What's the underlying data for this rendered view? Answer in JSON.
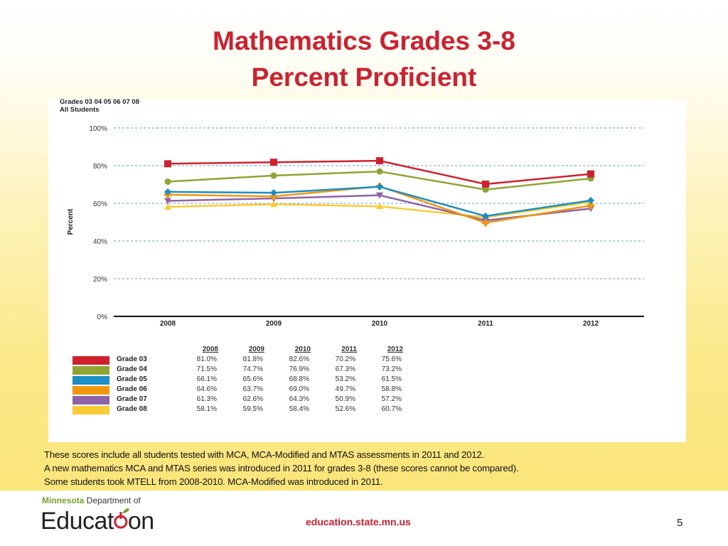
{
  "slide": {
    "title_line1": "Mathematics Grades 3-8",
    "title_line2": "Percent Proficient",
    "chart_subtitle_line1": "Grades 03 04 05 06 07 08",
    "chart_subtitle_line2": "All Students",
    "notes": [
      "These scores include all students tested with MCA, MCA-Modified and MTAS assessments in 2011 and 2012.",
      "A new mathematics MCA and MTAS series was introduced in 2011 for grades 3-8 (these scores cannot be compared).",
      "Some students took MTELL from 2008-2010.  MCA-Modified was introduced in 2011."
    ],
    "footer": {
      "logo_line1_bold": "Minnesota",
      "logo_line1_rest": " Department of",
      "logo_main": "Education",
      "url": "education.state.mn.us",
      "page_number": "5"
    }
  },
  "chart_data": {
    "type": "line",
    "title": "Mathematics Grades 3-8 Percent Proficient",
    "subtitle": "Grades 03 04 05 06 07 08 / All Students",
    "xlabel": "",
    "ylabel": "Percent",
    "ylim": [
      0,
      100
    ],
    "y_ticks": [
      "0%",
      "20%",
      "40%",
      "60%",
      "80%",
      "100%"
    ],
    "grid": true,
    "legend_position": "bottom-table",
    "categories": [
      "2008",
      "2009",
      "2010",
      "2011",
      "2012"
    ],
    "series": [
      {
        "name": "Grade 03",
        "color": "#d0202e",
        "marker": "square",
        "values": [
          81.0,
          81.8,
          82.6,
          70.2,
          75.6
        ],
        "labels": [
          "81.0%",
          "81.8%",
          "82.6%",
          "70.2%",
          "75.6%"
        ]
      },
      {
        "name": "Grade 04",
        "color": "#8ea532",
        "marker": "circle",
        "values": [
          71.5,
          74.7,
          76.9,
          67.3,
          73.2
        ],
        "labels": [
          "71.5%",
          "74.7%",
          "76.9%",
          "67.3%",
          "73.2%"
        ]
      },
      {
        "name": "Grade 05",
        "color": "#1a8fc4",
        "marker": "diamond",
        "values": [
          66.1,
          65.6,
          68.8,
          53.2,
          61.5
        ],
        "labels": [
          "66.1%",
          "65.6%",
          "68.8%",
          "53.2%",
          "61.5%"
        ]
      },
      {
        "name": "Grade 06",
        "color": "#f0970f",
        "marker": "plus",
        "values": [
          64.6,
          63.7,
          69.0,
          49.7,
          58.8
        ],
        "labels": [
          "64.6%",
          "63.7%",
          "69.0%",
          "49.7%",
          "58.8%"
        ]
      },
      {
        "name": "Grade 07",
        "color": "#8e63a8",
        "marker": "triangle-down",
        "values": [
          61.3,
          62.6,
          64.3,
          50.9,
          57.2
        ],
        "labels": [
          "61.3%",
          "62.6%",
          "64.3%",
          "50.9%",
          "57.2%"
        ]
      },
      {
        "name": "Grade 08",
        "color": "#f9cb36",
        "marker": "triangle-up",
        "values": [
          58.1,
          59.5,
          58.4,
          52.6,
          60.7
        ],
        "labels": [
          "58.1%",
          "59.5%",
          "58.4%",
          "52.6%",
          "60.7%"
        ]
      }
    ]
  }
}
